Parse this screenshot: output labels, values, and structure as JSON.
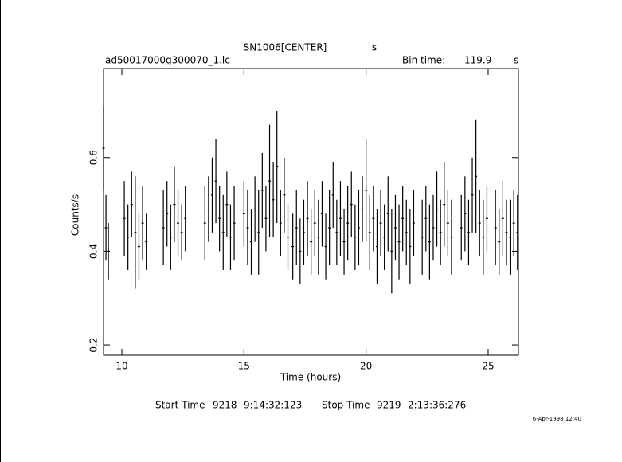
{
  "chart_data": {
    "type": "errorbar",
    "title": "SN1006[CENTER]",
    "title_unit": "s",
    "file_name": "ad50017000g300070_1.lc",
    "bin_time_label": "Bin time:",
    "bin_time": 119.9,
    "bin_time_unit": "s",
    "ylabel": "Counts/s",
    "xlabel": "Time (hours)",
    "start_label": "Start Time",
    "start_day": "9218",
    "start_time": "9:14:32:123",
    "stop_label": "Stop Time",
    "stop_day": "9219",
    "stop_time": "2:13:36:276",
    "date_stamp": "6-Apr-1998 12:40",
    "color": "#000000",
    "xlim": [
      9.25,
      26.24
    ],
    "ylim": [
      0.178,
      0.79
    ],
    "xticks": [
      10,
      15,
      20,
      25
    ],
    "yticks": [
      0.2,
      0.4,
      0.6
    ],
    "x": [
      9.25,
      9.35,
      9.45,
      10.1,
      10.25,
      10.4,
      10.55,
      10.7,
      10.85,
      11.0,
      11.7,
      11.85,
      12.0,
      12.15,
      12.3,
      12.45,
      12.6,
      13.4,
      13.55,
      13.7,
      13.85,
      14.0,
      14.15,
      14.3,
      14.45,
      14.6,
      15.0,
      15.15,
      15.3,
      15.45,
      15.6,
      15.75,
      15.9,
      16.05,
      16.2,
      16.35,
      16.5,
      16.65,
      16.8,
      17.0,
      17.15,
      17.3,
      17.45,
      17.6,
      17.75,
      17.9,
      18.05,
      18.2,
      18.35,
      18.5,
      18.65,
      18.8,
      18.95,
      19.1,
      19.25,
      19.4,
      19.55,
      19.7,
      19.85,
      20.0,
      20.15,
      20.3,
      20.45,
      20.6,
      20.75,
      20.9,
      21.05,
      21.2,
      21.35,
      21.5,
      21.65,
      21.8,
      21.95,
      22.3,
      22.45,
      22.6,
      22.75,
      22.9,
      23.05,
      23.2,
      23.35,
      23.5,
      23.9,
      24.05,
      24.2,
      24.35,
      24.5,
      24.65,
      24.8,
      24.95,
      25.3,
      25.45,
      25.6,
      25.75,
      25.9,
      26.05,
      26.2
    ],
    "values": [
      0.62,
      0.45,
      0.4,
      0.47,
      0.43,
      0.5,
      0.44,
      0.41,
      0.46,
      0.42,
      0.45,
      0.48,
      0.43,
      0.5,
      0.46,
      0.44,
      0.47,
      0.46,
      0.49,
      0.52,
      0.55,
      0.47,
      0.44,
      0.5,
      0.43,
      0.46,
      0.48,
      0.45,
      0.42,
      0.49,
      0.44,
      0.53,
      0.47,
      0.55,
      0.51,
      0.58,
      0.46,
      0.52,
      0.43,
      0.41,
      0.45,
      0.4,
      0.44,
      0.47,
      0.42,
      0.46,
      0.43,
      0.48,
      0.41,
      0.45,
      0.52,
      0.44,
      0.47,
      0.42,
      0.46,
      0.5,
      0.43,
      0.45,
      0.49,
      0.53,
      0.44,
      0.47,
      0.41,
      0.46,
      0.43,
      0.48,
      0.4,
      0.45,
      0.42,
      0.47,
      0.44,
      0.41,
      0.46,
      0.43,
      0.47,
      0.42,
      0.45,
      0.49,
      0.44,
      0.5,
      0.46,
      0.43,
      0.45,
      0.48,
      0.44,
      0.52,
      0.56,
      0.46,
      0.43,
      0.47,
      0.45,
      0.42,
      0.47,
      0.44,
      0.43,
      0.46,
      0.44
    ],
    "errors": [
      0.09,
      0.07,
      0.06,
      0.08,
      0.07,
      0.07,
      0.12,
      0.07,
      0.08,
      0.06,
      0.08,
      0.07,
      0.07,
      0.08,
      0.07,
      0.06,
      0.07,
      0.08,
      0.07,
      0.08,
      0.09,
      0.07,
      0.08,
      0.07,
      0.07,
      0.08,
      0.07,
      0.08,
      0.07,
      0.07,
      0.09,
      0.08,
      0.07,
      0.12,
      0.08,
      0.12,
      0.07,
      0.08,
      0.07,
      0.07,
      0.08,
      0.07,
      0.07,
      0.08,
      0.07,
      0.07,
      0.08,
      0.07,
      0.07,
      0.08,
      0.07,
      0.07,
      0.08,
      0.07,
      0.08,
      0.07,
      0.07,
      0.08,
      0.07,
      0.11,
      0.08,
      0.07,
      0.08,
      0.07,
      0.07,
      0.08,
      0.09,
      0.07,
      0.08,
      0.07,
      0.07,
      0.08,
      0.07,
      0.08,
      0.07,
      0.08,
      0.07,
      0.08,
      0.07,
      0.09,
      0.07,
      0.08,
      0.07,
      0.08,
      0.07,
      0.08,
      0.12,
      0.07,
      0.08,
      0.07,
      0.08,
      0.07,
      0.08,
      0.07,
      0.08,
      0.07,
      0.08
    ]
  }
}
